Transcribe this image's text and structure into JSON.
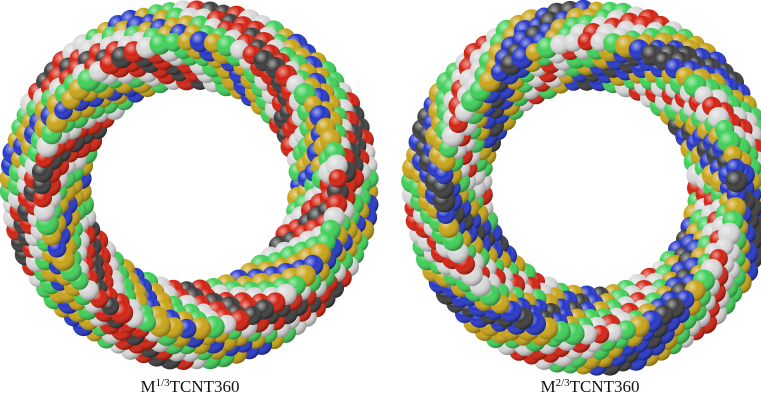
{
  "captions": [
    {
      "base": "M",
      "superscript": "1/3",
      "rest": "TCNT360"
    },
    {
      "base": "M",
      "superscript": "2/3",
      "rest": "TCNT360"
    }
  ]
}
